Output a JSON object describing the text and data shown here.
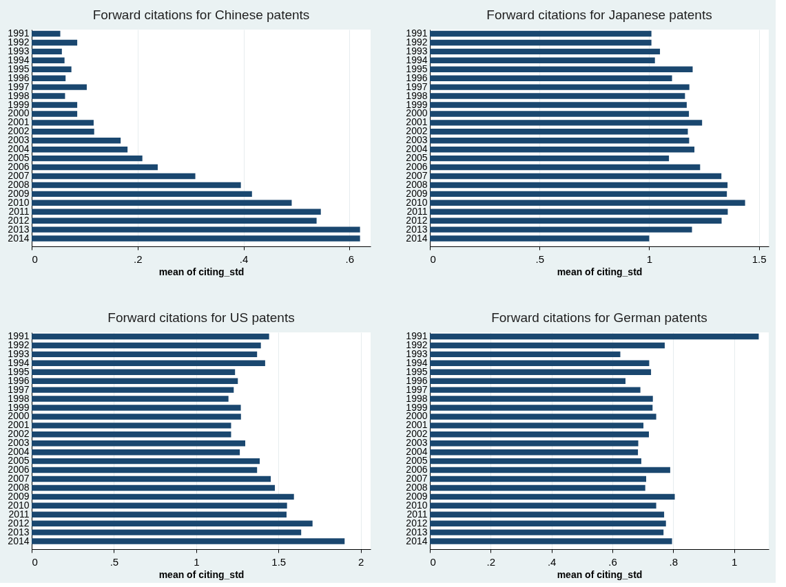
{
  "chart_data": [
    {
      "type": "bar",
      "orientation": "horizontal",
      "title": "Forward citations for Chinese patents",
      "xlabel": "mean of citing_std",
      "grid": "x",
      "color": "#1a476f",
      "categories": [
        "1991",
        "1992",
        "1993",
        "1994",
        "1995",
        "1996",
        "1997",
        "1998",
        "1999",
        "2000",
        "2001",
        "2002",
        "2003",
        "2004",
        "2005",
        "2006",
        "2007",
        "2008",
        "2009",
        "2010",
        "2011",
        "2012",
        "2013",
        "2014"
      ],
      "values": [
        0.054,
        0.086,
        0.057,
        0.062,
        0.075,
        0.064,
        0.104,
        0.063,
        0.086,
        0.086,
        0.117,
        0.118,
        0.168,
        0.181,
        0.209,
        0.238,
        0.309,
        0.395,
        0.416,
        0.491,
        0.546,
        0.538,
        0.62,
        0.62
      ],
      "xlim": [
        0,
        0.64
      ],
      "xticks": [
        0,
        {
          "value": 0.2,
          "label": ".2"
        },
        {
          "value": 0.4,
          "label": ".4"
        },
        {
          "value": 0.6,
          "label": ".6"
        }
      ]
    },
    {
      "type": "bar",
      "orientation": "horizontal",
      "title": "Forward citations for Japanese patents",
      "xlabel": "mean of citing_std",
      "grid": "x",
      "color": "#1a476f",
      "categories": [
        "1991",
        "1992",
        "1993",
        "1994",
        "1995",
        "1996",
        "1997",
        "1998",
        "1999",
        "2000",
        "2001",
        "2002",
        "2003",
        "2004",
        "2005",
        "2006",
        "2007",
        "2008",
        "2009",
        "2010",
        "2011",
        "2012",
        "2013",
        "2014"
      ],
      "values": [
        1.01,
        1.01,
        1.049,
        1.026,
        1.198,
        1.104,
        1.183,
        1.163,
        1.171,
        1.181,
        1.241,
        1.176,
        1.182,
        1.206,
        1.09,
        1.232,
        1.329,
        1.357,
        1.354,
        1.437,
        1.358,
        1.33,
        1.195,
        1.0
      ],
      "xlim": [
        0,
        1.545
      ],
      "xticks": [
        0,
        {
          "value": 0.5,
          "label": ".5"
        },
        1,
        1.5
      ]
    },
    {
      "type": "bar",
      "orientation": "horizontal",
      "title": "Forward citations for US patents",
      "xlabel": "mean of citing_std",
      "grid": "x",
      "color": "#1a476f",
      "categories": [
        "1991",
        "1992",
        "1993",
        "1994",
        "1995",
        "1996",
        "1997",
        "1998",
        "1999",
        "2000",
        "2001",
        "2002",
        "2003",
        "2004",
        "2005",
        "2006",
        "2007",
        "2008",
        "2009",
        "2010",
        "2011",
        "2012",
        "2013",
        "2014"
      ],
      "values": [
        1.443,
        1.393,
        1.37,
        1.419,
        1.236,
        1.253,
        1.228,
        1.196,
        1.271,
        1.272,
        1.212,
        1.212,
        1.298,
        1.265,
        1.386,
        1.37,
        1.453,
        1.478,
        1.594,
        1.552,
        1.549,
        1.707,
        1.638,
        1.902
      ],
      "xlim": [
        0,
        2.06
      ],
      "xticks": [
        0,
        {
          "value": 0.5,
          "label": ".5"
        },
        1,
        1.5,
        2
      ]
    },
    {
      "type": "bar",
      "orientation": "horizontal",
      "title": "Forward citations for German patents",
      "xlabel": "mean of citing_std",
      "grid": "x",
      "color": "#1a476f",
      "categories": [
        "1991",
        "1992",
        "1993",
        "1994",
        "1995",
        "1996",
        "1997",
        "1998",
        "1999",
        "2000",
        "2001",
        "2002",
        "2003",
        "2004",
        "2005",
        "2006",
        "2007",
        "2008",
        "2009",
        "2010",
        "2011",
        "2012",
        "2013",
        "2014"
      ],
      "values": [
        1.081,
        0.772,
        0.626,
        0.721,
        0.727,
        0.643,
        0.692,
        0.733,
        0.732,
        0.744,
        0.702,
        0.72,
        0.685,
        0.684,
        0.695,
        0.79,
        0.711,
        0.708,
        0.805,
        0.744,
        0.77,
        0.776,
        0.768,
        0.796
      ],
      "xlim": [
        0,
        1.114
      ],
      "xticks": [
        0,
        {
          "value": 0.2,
          "label": ".2"
        },
        {
          "value": 0.4,
          "label": ".4"
        },
        {
          "value": 0.6,
          "label": ".6"
        },
        {
          "value": 0.8,
          "label": ".8"
        },
        1
      ]
    }
  ]
}
